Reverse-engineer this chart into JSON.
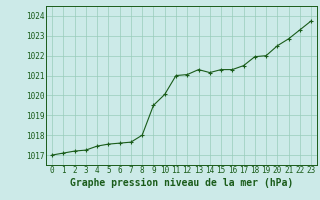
{
  "x": [
    0,
    1,
    2,
    3,
    4,
    5,
    6,
    7,
    8,
    9,
    10,
    11,
    12,
    13,
    14,
    15,
    16,
    17,
    18,
    19,
    20,
    21,
    22,
    23
  ],
  "y": [
    1017.0,
    1017.1,
    1017.2,
    1017.25,
    1017.45,
    1017.55,
    1017.6,
    1017.65,
    1018.0,
    1019.5,
    1020.05,
    1021.0,
    1021.05,
    1021.3,
    1021.15,
    1021.3,
    1021.3,
    1021.5,
    1021.95,
    1022.0,
    1022.5,
    1022.85,
    1023.3,
    1023.75
  ],
  "line_color": "#1a5c1a",
  "marker": "+",
  "marker_color": "#1a5c1a",
  "bg_color": "#cceae8",
  "grid_color": "#99ccbb",
  "tick_color": "#1a5c1a",
  "axis_color": "#1a5c1a",
  "xlabel": "Graphe pression niveau de la mer (hPa)",
  "ylim": [
    1016.5,
    1024.5
  ],
  "yticks": [
    1017,
    1018,
    1019,
    1020,
    1021,
    1022,
    1023,
    1024
  ],
  "xticks": [
    0,
    1,
    2,
    3,
    4,
    5,
    6,
    7,
    8,
    9,
    10,
    11,
    12,
    13,
    14,
    15,
    16,
    17,
    18,
    19,
    20,
    21,
    22,
    23
  ],
  "xlabel_fontsize": 7.0,
  "tick_fontsize": 5.5,
  "linewidth": 0.8,
  "markersize": 3.5,
  "markeredgewidth": 0.8
}
